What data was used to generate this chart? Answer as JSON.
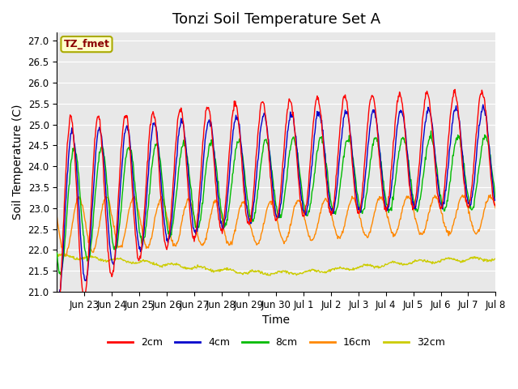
{
  "title": "Tonzi Soil Temperature Set A",
  "xlabel": "Time",
  "ylabel": "Soil Temperature (C)",
  "ylim": [
    21.0,
    27.2
  ],
  "annotation": "TZ_fmet",
  "legend": [
    "2cm",
    "4cm",
    "8cm",
    "16cm",
    "32cm"
  ],
  "line_colors": [
    "#ff0000",
    "#0000cc",
    "#00bb00",
    "#ff8800",
    "#cccc00"
  ],
  "bg_color": "#e8e8e8",
  "fig_bg": "#ffffff",
  "xtick_labels": [
    "Jun 23",
    "Jun 24",
    "Jun 25",
    "Jun 26",
    "Jun 27",
    "Jun 28",
    "Jun 29",
    "Jun 30",
    "Jul 1",
    "Jul 2",
    "Jul 3",
    "Jul 4",
    "Jul 5",
    "Jul 6",
    "Jul 7",
    "Jul 8"
  ],
  "xtick_positions": [
    1,
    2,
    3,
    4,
    5,
    6,
    7,
    8,
    9,
    10,
    11,
    12,
    13,
    14,
    15,
    16
  ],
  "ytick_positions": [
    21.0,
    21.5,
    22.0,
    22.5,
    23.0,
    23.5,
    24.0,
    24.5,
    25.0,
    25.5,
    26.0,
    26.5,
    27.0
  ],
  "grid_color": "#ffffff",
  "title_fontsize": 13,
  "axis_label_fontsize": 10,
  "tick_fontsize": 8.5,
  "legend_fontsize": 9
}
